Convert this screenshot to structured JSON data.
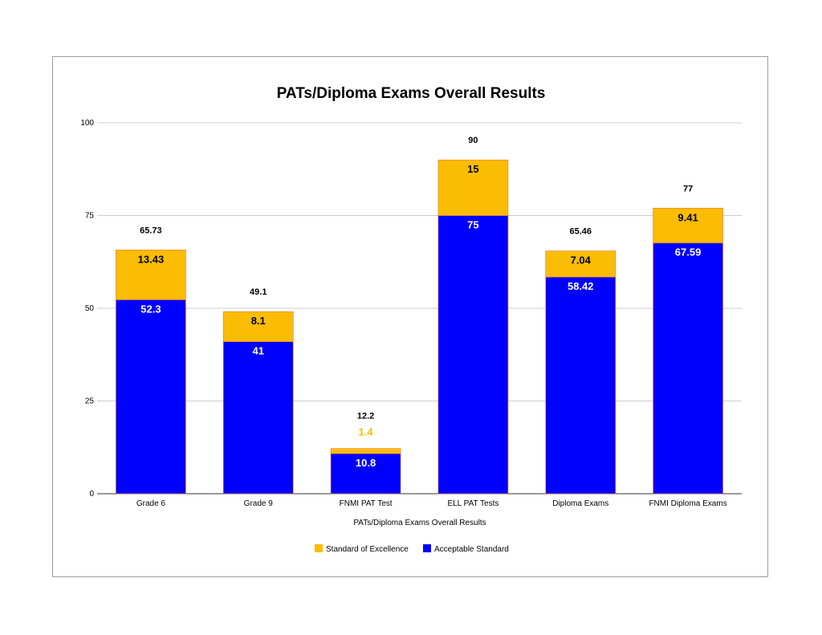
{
  "chart_data": {
    "type": "bar",
    "stacked": true,
    "title": "PATs/Diploma Exams Overall Results",
    "xlabel": "PATs/Diploma Exams Overall Results",
    "ylabel": "",
    "ylim": [
      0,
      100
    ],
    "yticks": [
      "0",
      "25",
      "50",
      "75",
      "100"
    ],
    "grid": true,
    "legend_position": "bottom",
    "categories": [
      "Grade 6",
      "Grade 9",
      "FNMI PAT Test",
      "ELL PAT Tests",
      "Diploma Exams",
      "FNMI Diploma Exams"
    ],
    "series": [
      {
        "name": "Acceptable Standard",
        "color": "#0000ff",
        "label_color": "#ffffff",
        "values": [
          52.3,
          41,
          10.8,
          75,
          58.42,
          67.59
        ],
        "labels": [
          "52.3",
          "41",
          "10.8",
          "75",
          "58.42",
          "67.59"
        ]
      },
      {
        "name": "Standard of Excellence",
        "color": "#fbbc04",
        "label_color": "#000000",
        "values": [
          13.43,
          8.1,
          1.4,
          15,
          7.04,
          9.41
        ],
        "labels": [
          "13.43",
          "8.1",
          "1.4",
          "15",
          "7.04",
          "9.41"
        ]
      }
    ],
    "totals": [
      "65.73",
      "49.1",
      "12.2",
      "90",
      "65.46",
      "77"
    ],
    "legend_order": [
      "Standard of Excellence",
      "Acceptable Standard"
    ],
    "special_label_color": "#fbbc04"
  }
}
